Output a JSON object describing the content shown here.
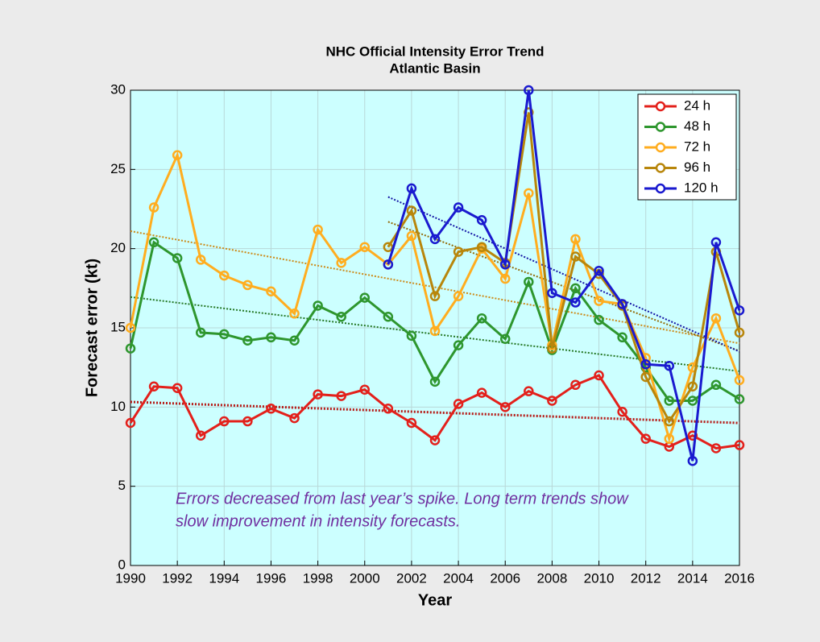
{
  "chart_data": {
    "type": "line",
    "title": "NHC Official Intensity Error Trend",
    "subtitle": "Atlantic Basin",
    "x_label": "Year",
    "y_label": "Forecast error (kt)",
    "annotations": [
      "Errors decreased from last year’s spike.  Long term trends show",
      "slow improvement in intensity forecasts."
    ],
    "x": [
      1990,
      1991,
      1992,
      1993,
      1994,
      1995,
      1996,
      1997,
      1998,
      1999,
      2000,
      2001,
      2002,
      2003,
      2004,
      2005,
      2006,
      2007,
      2008,
      2009,
      2010,
      2011,
      2012,
      2013,
      2014,
      2015,
      2016
    ],
    "series": [
      {
        "name": "24 h",
        "color": "#e3201b",
        "values": [
          9.0,
          11.3,
          11.2,
          8.2,
          9.1,
          9.1,
          9.9,
          9.3,
          10.8,
          10.7,
          11.1,
          9.9,
          9.0,
          7.9,
          10.2,
          10.9,
          10.0,
          11.0,
          10.4,
          11.4,
          12.0,
          9.7,
          8.0,
          7.5,
          8.2,
          7.4,
          7.6
        ]
      },
      {
        "name": "48 h",
        "color": "#2e962e",
        "values": [
          13.7,
          20.4,
          19.4,
          14.7,
          14.6,
          14.2,
          14.4,
          14.2,
          16.4,
          15.7,
          16.9,
          15.7,
          14.5,
          11.6,
          13.9,
          15.6,
          14.3,
          17.9,
          13.6,
          17.5,
          15.5,
          14.4,
          12.5,
          10.4,
          10.4,
          11.4,
          10.5
        ]
      },
      {
        "name": "72 h",
        "color": "#ffad1f",
        "values": [
          15.0,
          22.6,
          25.9,
          19.3,
          18.3,
          17.7,
          17.3,
          15.9,
          21.2,
          19.1,
          20.1,
          19.0,
          20.8,
          14.8,
          17.0,
          20.0,
          18.1,
          23.5,
          13.9,
          20.6,
          16.7,
          16.5,
          13.1,
          8.0,
          12.5,
          15.6,
          11.7
        ]
      },
      {
        "name": "96 h",
        "color": "#b8860b",
        "values": [
          null,
          null,
          null,
          null,
          null,
          null,
          null,
          null,
          null,
          null,
          null,
          20.1,
          22.4,
          17.0,
          19.8,
          20.1,
          19.1,
          28.6,
          13.7,
          19.5,
          18.4,
          16.4,
          11.9,
          9.1,
          11.3,
          19.8,
          14.7
        ]
      },
      {
        "name": "120 h",
        "color": "#1a1acf",
        "values": [
          null,
          null,
          null,
          null,
          null,
          null,
          null,
          null,
          null,
          null,
          null,
          19.0,
          23.8,
          20.6,
          22.6,
          21.8,
          19.0,
          30.0,
          17.2,
          16.6,
          18.6,
          16.5,
          12.7,
          12.6,
          6.6,
          20.4,
          16.1
        ]
      }
    ],
    "trend_lines": true,
    "xlim": [
      1990,
      2016
    ],
    "xticks": [
      1990,
      1992,
      1994,
      1996,
      1998,
      2000,
      2002,
      2004,
      2006,
      2008,
      2010,
      2012,
      2014,
      2016
    ],
    "ylim": [
      0,
      30
    ],
    "yticks": [
      0,
      5,
      10,
      15,
      20,
      25,
      30
    ],
    "grid": true,
    "legend": "upper right",
    "plot_background": "#ccffff"
  }
}
